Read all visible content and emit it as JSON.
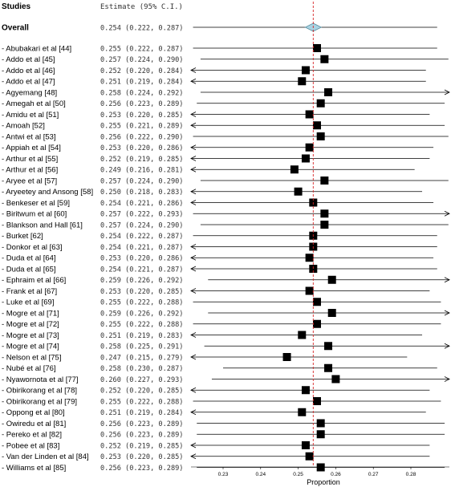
{
  "chart_data": {
    "type": "forest",
    "header": {
      "studies": "Studies",
      "estimate": "Estimate (95% C.I.)"
    },
    "xlabel": "Proportion",
    "xticks": [
      "0.23",
      "0.24",
      "0.25",
      "0.26",
      "0.27",
      "0.28"
    ],
    "xlim": [
      0.224,
      0.285
    ],
    "reference_line": 0.254,
    "overall": {
      "label": "Overall",
      "estimate": 0.254,
      "lower": 0.222,
      "upper": 0.287,
      "text": "0.254 (0.222, 0.287)"
    },
    "studies": [
      {
        "label": "Abubakari  et  al [44]",
        "estimate": 0.255,
        "lower": 0.222,
        "upper": 0.287,
        "text": "0.255 (0.222, 0.287)"
      },
      {
        "label": "Addo et al [45]",
        "estimate": 0.257,
        "lower": 0.224,
        "upper": 0.29,
        "text": "0.257 (0.224, 0.290)"
      },
      {
        "label": "Addo et al [46]",
        "estimate": 0.252,
        "lower": 0.22,
        "upper": 0.284,
        "text": "0.252 (0.220, 0.284)"
      },
      {
        "label": "Addo et al [47]",
        "estimate": 0.251,
        "lower": 0.219,
        "upper": 0.284,
        "text": "0.251 (0.219, 0.284)"
      },
      {
        "label": "Agyemang [48]",
        "estimate": 0.258,
        "lower": 0.224,
        "upper": 0.292,
        "text": "0.258 (0.224, 0.292)"
      },
      {
        "label": "Amegah et al [50]",
        "estimate": 0.256,
        "lower": 0.223,
        "upper": 0.289,
        "text": "0.256 (0.223, 0.289)"
      },
      {
        "label": "Amidu et al [51]",
        "estimate": 0.253,
        "lower": 0.22,
        "upper": 0.285,
        "text": "0.253 (0.220, 0.285)"
      },
      {
        "label": "Amoah [52]",
        "estimate": 0.255,
        "lower": 0.221,
        "upper": 0.289,
        "text": "0.255 (0.221, 0.289)"
      },
      {
        "label": "Antwi et al [53]",
        "estimate": 0.256,
        "lower": 0.222,
        "upper": 0.29,
        "text": "0.256 (0.222, 0.290)"
      },
      {
        "label": "Appiah et al [54]",
        "estimate": 0.253,
        "lower": 0.22,
        "upper": 0.286,
        "text": "0.253 (0.220, 0.286)"
      },
      {
        "label": "Arthur et al [55]",
        "estimate": 0.252,
        "lower": 0.219,
        "upper": 0.285,
        "text": "0.252 (0.219, 0.285)"
      },
      {
        "label": "Arthur et al [56]",
        "estimate": 0.249,
        "lower": 0.216,
        "upper": 0.281,
        "text": "0.249 (0.216, 0.281)"
      },
      {
        "label": "Aryee et al [57]",
        "estimate": 0.257,
        "lower": 0.224,
        "upper": 0.29,
        "text": "0.257 (0.224, 0.290)"
      },
      {
        "label": "Aryeetey and Ansong [58]",
        "estimate": 0.25,
        "lower": 0.218,
        "upper": 0.283,
        "text": "0.250 (0.218, 0.283)"
      },
      {
        "label": "Benkeser et al [59]",
        "estimate": 0.254,
        "lower": 0.221,
        "upper": 0.286,
        "text": "0.254 (0.221, 0.286)"
      },
      {
        "label": "Biritwum et al [60]",
        "estimate": 0.257,
        "lower": 0.222,
        "upper": 0.293,
        "text": "0.257 (0.222, 0.293)"
      },
      {
        "label": "Blankson and Hall [61]",
        "estimate": 0.257,
        "lower": 0.224,
        "upper": 0.29,
        "text": "0.257 (0.224, 0.290)"
      },
      {
        "label": "Burket [62]",
        "estimate": 0.254,
        "lower": 0.222,
        "upper": 0.287,
        "text": "0.254 (0.222, 0.287)"
      },
      {
        "label": "Donkor et al [63]",
        "estimate": 0.254,
        "lower": 0.221,
        "upper": 0.287,
        "text": "0.254 (0.221, 0.287)"
      },
      {
        "label": "Duda et al [64]",
        "estimate": 0.253,
        "lower": 0.22,
        "upper": 0.286,
        "text": "0.253 (0.220, 0.286)"
      },
      {
        "label": "Duda et al  [65]",
        "estimate": 0.254,
        "lower": 0.221,
        "upper": 0.287,
        "text": "0.254 (0.221, 0.287)"
      },
      {
        "label": "Ephraim et al [66]",
        "estimate": 0.259,
        "lower": 0.226,
        "upper": 0.292,
        "text": "0.259 (0.226, 0.292)"
      },
      {
        "label": "Frank et al  [67]",
        "estimate": 0.253,
        "lower": 0.22,
        "upper": 0.285,
        "text": "0.253 (0.220, 0.285)"
      },
      {
        "label": "Luke et al [69]",
        "estimate": 0.255,
        "lower": 0.222,
        "upper": 0.288,
        "text": "0.255 (0.222, 0.288)"
      },
      {
        "label": "Mogre et al [71]",
        "estimate": 0.259,
        "lower": 0.226,
        "upper": 0.292,
        "text": "0.259 (0.226, 0.292)"
      },
      {
        "label": "Mogre et al [72]",
        "estimate": 0.255,
        "lower": 0.222,
        "upper": 0.288,
        "text": "0.255 (0.222, 0.288)"
      },
      {
        "label": "Mogre et al [73]",
        "estimate": 0.251,
        "lower": 0.219,
        "upper": 0.283,
        "text": "0.251 (0.219, 0.283)"
      },
      {
        "label": "Mogre et al [74]",
        "estimate": 0.258,
        "lower": 0.225,
        "upper": 0.291,
        "text": "0.258 (0.225, 0.291)"
      },
      {
        "label": "Nelson et al [75]",
        "estimate": 0.247,
        "lower": 0.215,
        "upper": 0.279,
        "text": "0.247 (0.215, 0.279)"
      },
      {
        "label": "Nubé   et al  [76]",
        "estimate": 0.258,
        "lower": 0.23,
        "upper": 0.287,
        "text": "0.258 (0.230, 0.287)"
      },
      {
        "label": "Nyawornota  et  al  [77]",
        "estimate": 0.26,
        "lower": 0.227,
        "upper": 0.293,
        "text": "0.260 (0.227, 0.293)"
      },
      {
        "label": "Obirikorang et al [78]",
        "estimate": 0.252,
        "lower": 0.22,
        "upper": 0.285,
        "text": "0.252 (0.220, 0.285)"
      },
      {
        "label": "Obirikorang et al [79]",
        "estimate": 0.255,
        "lower": 0.222,
        "upper": 0.288,
        "text": "0.255 (0.222, 0.288)"
      },
      {
        "label": "Oppong et al [80]",
        "estimate": 0.251,
        "lower": 0.219,
        "upper": 0.284,
        "text": "0.251 (0.219, 0.284)"
      },
      {
        "label": "Owiredu et al [81]",
        "estimate": 0.256,
        "lower": 0.223,
        "upper": 0.289,
        "text": "0.256 (0.223, 0.289)"
      },
      {
        "label": "Pereko et al  [82]",
        "estimate": 0.256,
        "lower": 0.223,
        "upper": 0.289,
        "text": "0.256 (0.223, 0.289)"
      },
      {
        "label": "Pobee et al [83]",
        "estimate": 0.252,
        "lower": 0.219,
        "upper": 0.285,
        "text": "0.252 (0.219, 0.285)"
      },
      {
        "label": "Van der Linden et al [84]",
        "estimate": 0.253,
        "lower": 0.22,
        "upper": 0.285,
        "text": "0.253 (0.220, 0.285)"
      },
      {
        "label": "Williams et al [85]",
        "estimate": 0.256,
        "lower": 0.223,
        "upper": 0.289,
        "text": "0.256 (0.223, 0.289)"
      }
    ],
    "colors": {
      "reference_line": "#d62728",
      "diamond_fill": "#a9d3e3",
      "diamond_stroke": "#5a8ea0",
      "marker": "#000000",
      "ci_line": "#000000"
    }
  }
}
